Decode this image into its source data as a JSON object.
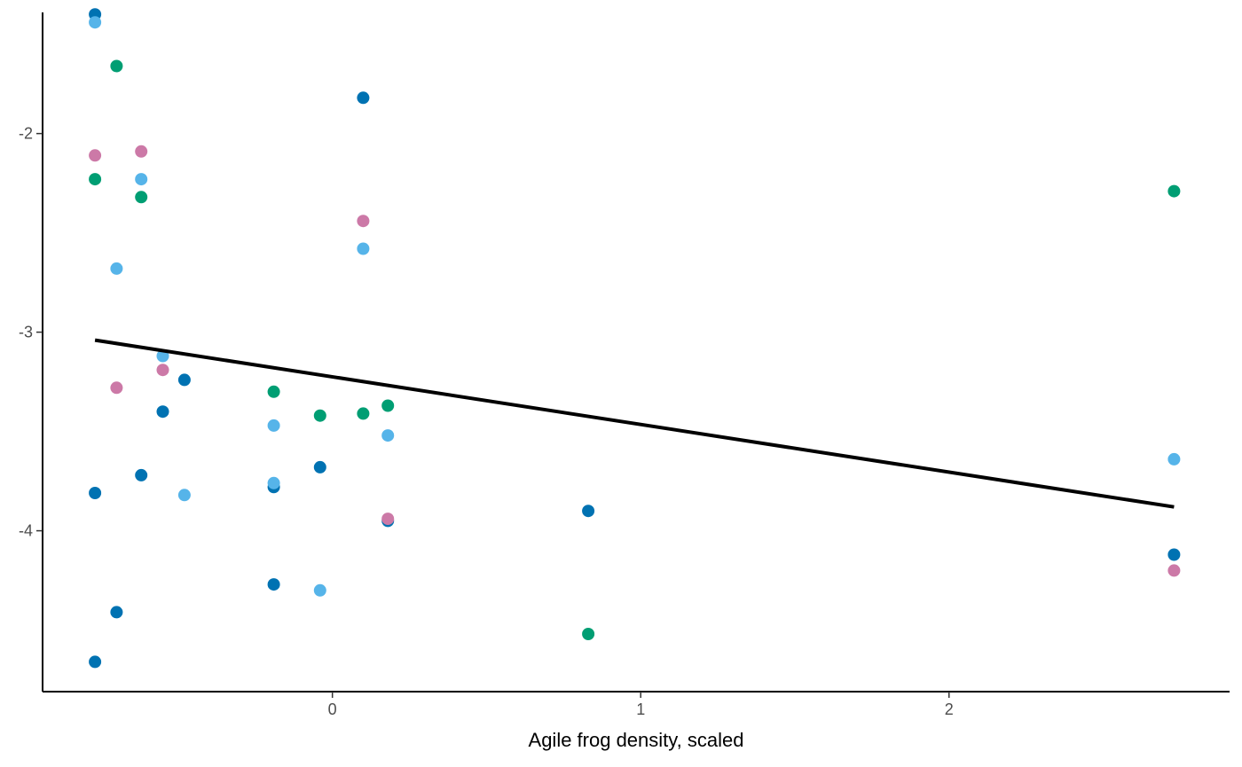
{
  "chart_data": {
    "type": "scatter",
    "title": "",
    "xlabel": "Agile frog density, scaled",
    "ylabel": "",
    "xlim": [
      -0.94,
      2.91
    ],
    "ylim": [
      -4.81,
      -1.39
    ],
    "x_ticks": [
      {
        "value": 0,
        "label": "0"
      },
      {
        "value": 1,
        "label": "1"
      },
      {
        "value": 2,
        "label": "2"
      }
    ],
    "y_ticks": [
      {
        "value": -2,
        "label": "-2"
      },
      {
        "value": -3,
        "label": "-3"
      },
      {
        "value": -4,
        "label": "-4"
      }
    ],
    "grid": false,
    "legend": "none",
    "trend_line": {
      "color": "#000000",
      "points": [
        [
          -0.77,
          -3.04
        ],
        [
          2.73,
          -3.88
        ]
      ]
    },
    "series": [
      {
        "color": "#0072B2",
        "points": [
          [
            -0.77,
            -1.4
          ],
          [
            -0.77,
            -3.81
          ],
          [
            -0.77,
            -4.66
          ],
          [
            -0.7,
            -4.41
          ],
          [
            -0.62,
            -3.72
          ],
          [
            -0.55,
            -3.4
          ],
          [
            -0.48,
            -3.24
          ],
          [
            -0.19,
            -3.78
          ],
          [
            -0.19,
            -4.27
          ],
          [
            -0.04,
            -3.68
          ],
          [
            0.1,
            -1.82
          ],
          [
            0.18,
            -3.95
          ],
          [
            0.83,
            -3.9
          ],
          [
            2.73,
            -4.12
          ]
        ]
      },
      {
        "color": "#56B4E9",
        "points": [
          [
            -0.77,
            -1.44
          ],
          [
            -0.7,
            -2.68
          ],
          [
            -0.62,
            -2.23
          ],
          [
            -0.55,
            -3.12
          ],
          [
            -0.48,
            -3.82
          ],
          [
            -0.19,
            -3.47
          ],
          [
            -0.19,
            -3.76
          ],
          [
            -0.04,
            -4.3
          ],
          [
            0.1,
            -2.58
          ],
          [
            0.18,
            -3.52
          ],
          [
            2.73,
            -3.64
          ]
        ]
      },
      {
        "color": "#009E73",
        "points": [
          [
            -0.7,
            -1.66
          ],
          [
            -0.77,
            -2.23
          ],
          [
            -0.62,
            -2.32
          ],
          [
            -0.19,
            -3.3
          ],
          [
            -0.04,
            -3.42
          ],
          [
            0.1,
            -3.41
          ],
          [
            0.18,
            -3.37
          ],
          [
            0.83,
            -4.52
          ],
          [
            2.73,
            -2.29
          ]
        ]
      },
      {
        "color": "#CC79A7",
        "points": [
          [
            -0.77,
            -2.11
          ],
          [
            -0.62,
            -2.09
          ],
          [
            -0.7,
            -3.28
          ],
          [
            -0.55,
            -3.19
          ],
          [
            0.1,
            -2.44
          ],
          [
            0.18,
            -3.94
          ],
          [
            2.73,
            -4.2
          ]
        ]
      }
    ]
  }
}
